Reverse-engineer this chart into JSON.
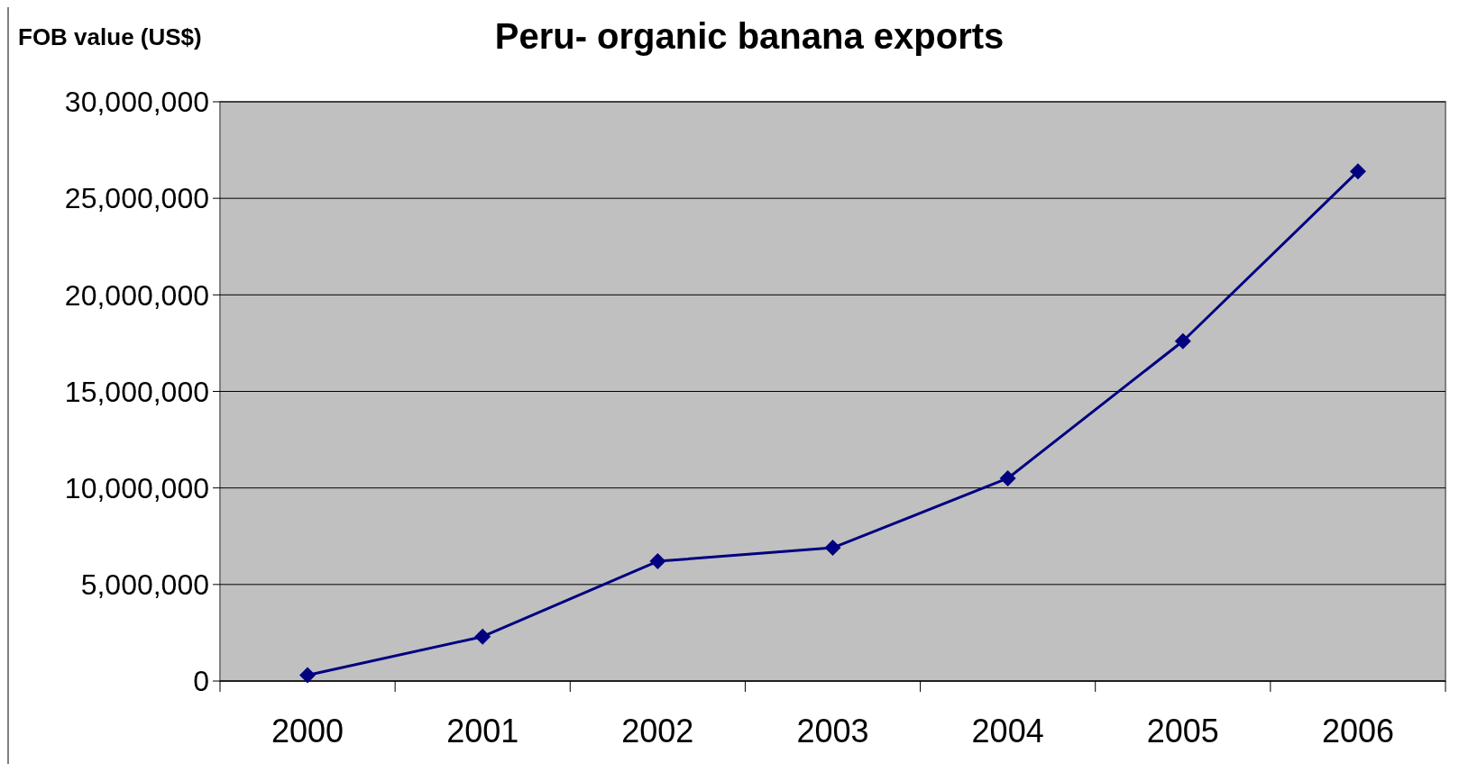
{
  "chart_data": {
    "type": "line",
    "title": "Peru- organic banana exports",
    "ylabel": "FOB value  (US$)",
    "categories": [
      "2000",
      "2001",
      "2002",
      "2003",
      "2004",
      "2005",
      "2006"
    ],
    "series": [
      {
        "color": "#000080",
        "values": [
          300000,
          2300000,
          6200000,
          6900000,
          10500000,
          17600000,
          26400000
        ]
      }
    ],
    "ylim": [
      0,
      30000000
    ],
    "yticks": [
      {
        "value": 0,
        "label": "0"
      },
      {
        "value": 5000000,
        "label": "5,000,000"
      },
      {
        "value": 10000000,
        "label": "10,000,000"
      },
      {
        "value": 15000000,
        "label": "15,000,000"
      },
      {
        "value": 20000000,
        "label": "20,000,000"
      },
      {
        "value": 25000000,
        "label": "25,000,000"
      },
      {
        "value": 30000000,
        "label": "30,000,000"
      }
    ],
    "grid": "y",
    "marker": "diamond",
    "line_style": "solid"
  }
}
